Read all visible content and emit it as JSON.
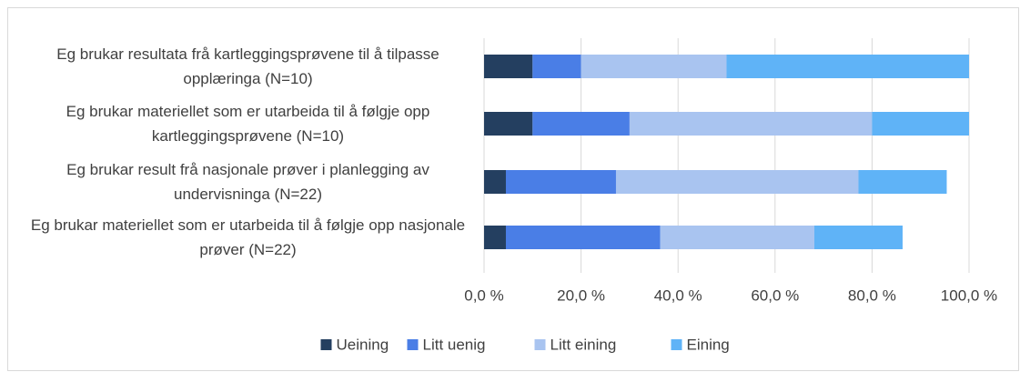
{
  "chart_data": {
    "type": "stacked-barh",
    "categories": [
      "Eg brukar resultata frå kartleggingsprøvene til å tilpasse opplæringa (N=10)",
      "Eg brukar materiellet som er utarbeida til å følgje opp kartleggingsprøvene (N=10)",
      "Eg brukar result frå nasjonale prøver i planlegging av undervisninga (N=22)",
      "Eg brukar materiellet som er utarbeida til å følgje opp nasjonale prøver (N=22)"
    ],
    "series": [
      {
        "name": "Ueining",
        "color": "#243f60",
        "values": [
          10,
          10,
          4.5,
          4.5
        ]
      },
      {
        "name": "Litt uenig",
        "color": "#4a7ee6",
        "values": [
          10,
          20,
          22.7,
          31.8
        ]
      },
      {
        "name": "Litt eining",
        "color": "#a9c4f0",
        "values": [
          30,
          50,
          50,
          31.8
        ]
      },
      {
        "name": "Eining",
        "color": "#5fb3f7",
        "values": [
          50,
          20,
          18.2,
          18.2
        ]
      }
    ],
    "xlim": [
      0,
      100
    ],
    "xticks": [
      {
        "value": 0,
        "label": "0,0 %"
      },
      {
        "value": 20,
        "label": "20,0 %"
      },
      {
        "value": 40,
        "label": "40,0 %"
      },
      {
        "value": 60,
        "label": "60,0 %"
      },
      {
        "value": 80,
        "label": "80,0 %"
      },
      {
        "value": 100,
        "label": "100,0 %"
      }
    ],
    "grid": true,
    "legend": "bottom"
  }
}
